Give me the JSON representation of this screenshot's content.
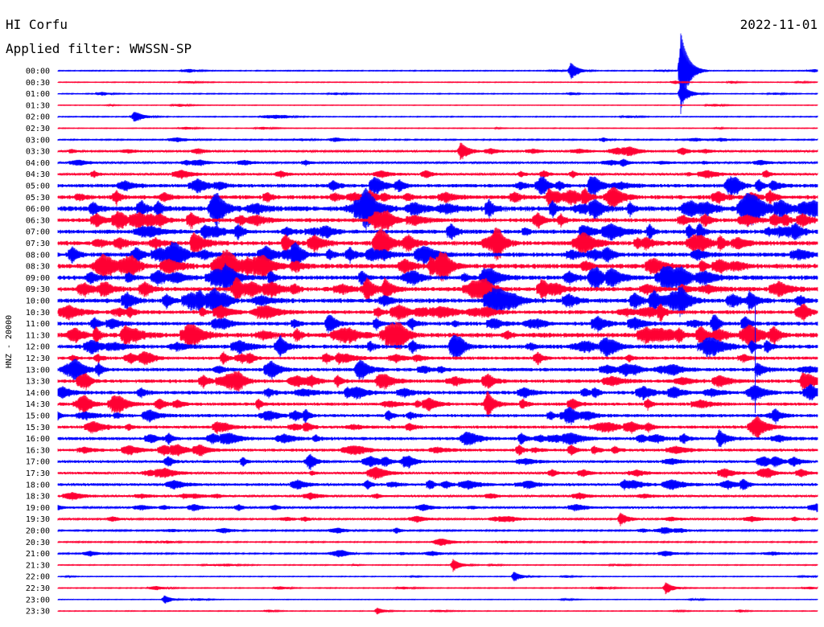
{
  "header": {
    "station": "HI Corfu",
    "date": "2022-11-01",
    "filter": "Applied filter: WWSSN-SP"
  },
  "side_label": "HNZ - 20000",
  "colors": {
    "background": "#ffffff",
    "trace_even": "#0000ff",
    "trace_odd": "#ff0033",
    "text": "#000000"
  },
  "chart_data": {
    "type": "helicorder",
    "row_labels": [
      "00:00",
      "00:30",
      "01:00",
      "01:30",
      "02:00",
      "02:30",
      "03:00",
      "03:30",
      "04:00",
      "04:30",
      "05:00",
      "05:30",
      "06:00",
      "06:30",
      "07:00",
      "07:30",
      "08:00",
      "08:30",
      "09:00",
      "09:30",
      "10:00",
      "10:30",
      "11:00",
      "11:30",
      "12:00",
      "12:30",
      "13:00",
      "13:30",
      "14:00",
      "14:30",
      "15:00",
      "15:30",
      "16:00",
      "16:30",
      "17:00",
      "17:30",
      "18:00",
      "18:30",
      "19:00",
      "19:30",
      "20:00",
      "20:30",
      "21:00",
      "21:30",
      "22:00",
      "22:30",
      "23:00",
      "23:30"
    ],
    "row_colors": [
      "blue",
      "red",
      "blue",
      "red",
      "blue",
      "red",
      "blue",
      "red",
      "blue",
      "red",
      "blue",
      "red",
      "blue",
      "red",
      "blue",
      "red",
      "blue",
      "red",
      "blue",
      "red",
      "blue",
      "red",
      "blue",
      "red",
      "blue",
      "red",
      "blue",
      "red",
      "blue",
      "red",
      "blue",
      "red",
      "blue",
      "red",
      "blue",
      "red",
      "blue",
      "red",
      "blue",
      "red",
      "blue",
      "red",
      "blue",
      "red",
      "blue",
      "red",
      "blue",
      "red"
    ],
    "noise_level": [
      0.6,
      0.5,
      0.6,
      0.4,
      0.6,
      0.5,
      0.8,
      1.2,
      1.2,
      1.4,
      2.2,
      2.6,
      3.2,
      2.6,
      2.6,
      2.8,
      2.8,
      3.0,
      2.8,
      2.8,
      2.8,
      2.4,
      2.4,
      3.0,
      2.6,
      2.0,
      2.2,
      2.2,
      2.2,
      2.0,
      2.0,
      1.9,
      2.0,
      1.8,
      1.7,
      1.5,
      1.7,
      1.3,
      1.2,
      1.1,
      1.0,
      0.8,
      0.9,
      0.6,
      0.5,
      0.6,
      0.4,
      0.5
    ],
    "events": [
      {
        "row": 0,
        "t": 0.675,
        "amp": 10
      },
      {
        "row": 0,
        "t": 0.82,
        "amp": 48
      },
      {
        "row": 2,
        "t": 0.82,
        "amp": 14
      },
      {
        "row": 4,
        "t": 0.1,
        "amp": 5
      },
      {
        "row": 7,
        "t": 0.53,
        "amp": 11
      },
      {
        "row": 10,
        "t": 0.7,
        "amp": 7
      },
      {
        "row": 10,
        "t": 0.94,
        "amp": 6
      },
      {
        "row": 15,
        "t": 0.575,
        "amp": 11
      },
      {
        "row": 17,
        "t": 0.49,
        "amp": 12
      },
      {
        "row": 18,
        "t": 0.22,
        "amp": 9
      },
      {
        "row": 18,
        "t": 0.7,
        "amp": 8
      },
      {
        "row": 19,
        "t": 0.43,
        "amp": 12
      },
      {
        "row": 20,
        "t": 0.91,
        "amp": 10
      },
      {
        "row": 26,
        "t": 0.92,
        "amp": 8
      },
      {
        "row": 27,
        "t": 0.98,
        "amp": 7
      },
      {
        "row": 29,
        "t": 0.565,
        "amp": 10
      },
      {
        "row": 32,
        "t": 0.87,
        "amp": 11
      },
      {
        "row": 39,
        "t": 0.74,
        "amp": 8
      },
      {
        "row": 43,
        "t": 0.52,
        "amp": 7
      },
      {
        "row": 44,
        "t": 0.6,
        "amp": 6
      },
      {
        "row": 45,
        "t": 0.8,
        "amp": 7
      },
      {
        "row": 46,
        "t": 0.14,
        "amp": 5
      },
      {
        "row": 47,
        "t": 0.42,
        "amp": 4
      }
    ],
    "long_spikes": [
      {
        "row": 20,
        "t": 0.918,
        "up": 2,
        "down": 140
      }
    ]
  }
}
